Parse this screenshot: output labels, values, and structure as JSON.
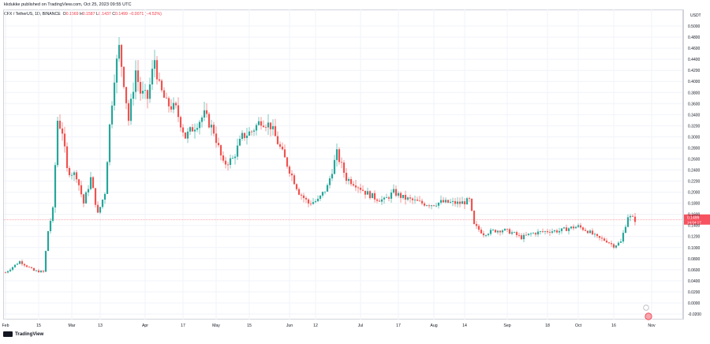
{
  "header": {
    "published": "kkdukke published on TradingView.com, Oct 25, 2023 09:55 UTC",
    "symbol": "CFX / TetherUS, 1D, BINANCE",
    "open_label": "O",
    "open": "0.1569",
    "high_label": "H",
    "high": "0.1587",
    "low_label": "L",
    "low": "0.1437",
    "close_label": "C",
    "close": "0.1499",
    "change": "−0.0071 (−4.52%)"
  },
  "price_axis": {
    "currency": "USDT",
    "current_price": "0.1499",
    "countdown": "14:04:17"
  },
  "colors": {
    "up": "#26a69a",
    "down": "#ef5350",
    "grid": "#f0f3fa",
    "price_line": "#f7525f",
    "text": "#131722"
  },
  "footer": {
    "brand": "TradingView"
  },
  "chart_data": {
    "type": "candlestick",
    "title": "CFX / TetherUS, 1D, BINANCE",
    "ylim": [
      -0.03,
      0.53
    ],
    "y_ticks": [
      "0.5000",
      "0.4800",
      "0.4600",
      "0.4400",
      "0.4200",
      "0.4000",
      "0.3800",
      "0.3600",
      "0.3400",
      "0.3200",
      "0.3000",
      "0.2800",
      "0.2600",
      "0.2400",
      "0.2200",
      "0.2000",
      "0.1800",
      "0.1600",
      "0.1400",
      "0.1200",
      "0.1000",
      "0.0800",
      "0.0600",
      "0.0400",
      "0.0200",
      "0.0000",
      "-0.0200"
    ],
    "x_ticks": [
      {
        "label": "Feb",
        "day": 0
      },
      {
        "label": "15",
        "day": 14
      },
      {
        "label": "Mar",
        "day": 28
      },
      {
        "label": "13",
        "day": 40
      },
      {
        "label": "Apr",
        "day": 59
      },
      {
        "label": "17",
        "day": 75
      },
      {
        "label": "May",
        "day": 89
      },
      {
        "label": "15",
        "day": 103
      },
      {
        "label": "Jun",
        "day": 120
      },
      {
        "label": "12",
        "day": 131
      },
      {
        "label": "Jul",
        "day": 150
      },
      {
        "label": "17",
        "day": 166
      },
      {
        "label": "Aug",
        "day": 181
      },
      {
        "label": "14",
        "day": 194
      },
      {
        "label": "Sep",
        "day": 212
      },
      {
        "label": "18",
        "day": 229
      },
      {
        "label": "Oct",
        "day": 242
      },
      {
        "label": "16",
        "day": 257
      },
      {
        "label": "Nov",
        "day": 273
      }
    ],
    "current_price": 0.1499,
    "points": [
      [
        0.055,
        0.101,
        0.143,
        0.084,
        0.084,
        0.08,
        0.095,
        0.086,
        0.124,
        0.117,
        0.113,
        0.13,
        0.125,
        0.13,
        0.118,
        0.108,
        0.101,
        0.099,
        0.148,
        0.144,
        0.155,
        0.14,
        0.15,
        0.169,
        0.171,
        0.164,
        0.181,
        0.185,
        0.18,
        0.174,
        0.168,
        0.194
      ],
      [
        0.06,
        0.06,
        0.066,
        0.055,
        0.064,
        0.066,
        0.069,
        0.071,
        0.088,
        0.123,
        0.149,
        0.201,
        0.25,
        0.29,
        0.302,
        0.313,
        0.328,
        0.336,
        0.32,
        0.307,
        0.329,
        0.338,
        0.331,
        0.337,
        0.316,
        0.317,
        0.322,
        0.32,
        0.327,
        0.319,
        0.331
      ]
    ]
  }
}
